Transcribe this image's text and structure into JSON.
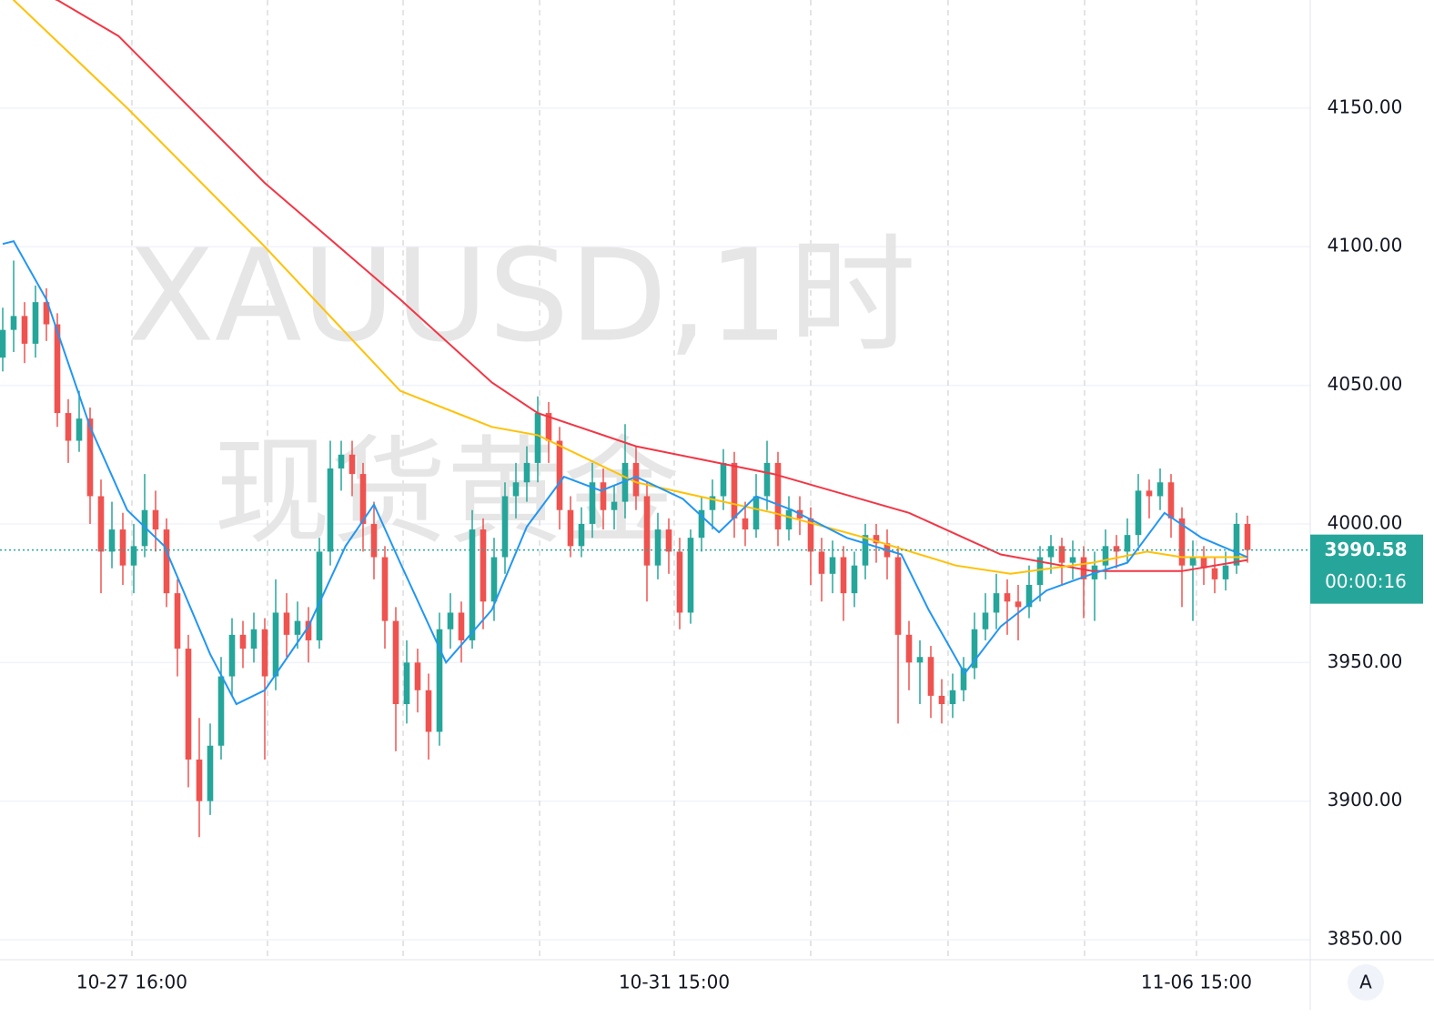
{
  "chart_data": {
    "type": "candlestick",
    "watermark": [
      "XAUUSD,1时",
      "现货黄金"
    ],
    "ohlc": [
      [
        4060,
        4078,
        4055,
        4070
      ],
      [
        4070,
        4095,
        4062,
        4075
      ],
      [
        4075,
        4080,
        4058,
        4065
      ],
      [
        4065,
        4086,
        4060,
        4080
      ],
      [
        4080,
        4085,
        4066,
        4072
      ],
      [
        4072,
        4076,
        4035,
        4040
      ],
      [
        4040,
        4045,
        4022,
        4030
      ],
      [
        4030,
        4048,
        4026,
        4038
      ],
      [
        4038,
        4042,
        4000,
        4010
      ],
      [
        4010,
        4016,
        3975,
        3990
      ],
      [
        3990,
        4008,
        3984,
        3998
      ],
      [
        3998,
        4004,
        3978,
        3985
      ],
      [
        3985,
        4000,
        3975,
        3992
      ],
      [
        3992,
        4018,
        3988,
        4005
      ],
      [
        4005,
        4012,
        3990,
        3998
      ],
      [
        3998,
        4002,
        3970,
        3975
      ],
      [
        3975,
        3980,
        3945,
        3955
      ],
      [
        3955,
        3960,
        3905,
        3915
      ],
      [
        3915,
        3930,
        3887,
        3900
      ],
      [
        3900,
        3928,
        3895,
        3920
      ],
      [
        3920,
        3952,
        3915,
        3945
      ],
      [
        3945,
        3966,
        3938,
        3960
      ],
      [
        3960,
        3965,
        3948,
        3955
      ],
      [
        3955,
        3968,
        3950,
        3962
      ],
      [
        3962,
        3966,
        3915,
        3945
      ],
      [
        3945,
        3980,
        3940,
        3968
      ],
      [
        3968,
        3975,
        3952,
        3960
      ],
      [
        3960,
        3972,
        3955,
        3965
      ],
      [
        3965,
        3970,
        3950,
        3958
      ],
      [
        3958,
        3995,
        3955,
        3990
      ],
      [
        3990,
        4030,
        3985,
        4020
      ],
      [
        4020,
        4030,
        4012,
        4025
      ],
      [
        4025,
        4030,
        4010,
        4018
      ],
      [
        4018,
        4022,
        3990,
        4000
      ],
      [
        4000,
        4008,
        3980,
        3988
      ],
      [
        3988,
        3992,
        3955,
        3965
      ],
      [
        3965,
        3970,
        3918,
        3935
      ],
      [
        3935,
        3958,
        3928,
        3950
      ],
      [
        3950,
        3955,
        3932,
        3940
      ],
      [
        3940,
        3946,
        3915,
        3925
      ],
      [
        3925,
        3968,
        3920,
        3962
      ],
      [
        3962,
        3975,
        3955,
        3968
      ],
      [
        3968,
        3972,
        3950,
        3958
      ],
      [
        3958,
        4005,
        3955,
        3998
      ],
      [
        3998,
        4002,
        3962,
        3972
      ],
      [
        3972,
        3995,
        3965,
        3988
      ],
      [
        3988,
        4015,
        3982,
        4010
      ],
      [
        4010,
        4022,
        4002,
        4015
      ],
      [
        4015,
        4028,
        4008,
        4022
      ],
      [
        4022,
        4046,
        4015,
        4040
      ],
      [
        4040,
        4044,
        4022,
        4030
      ],
      [
        4030,
        4035,
        3998,
        4005
      ],
      [
        4005,
        4010,
        3988,
        3992
      ],
      [
        3992,
        4006,
        3988,
        4000
      ],
      [
        4000,
        4022,
        3995,
        4015
      ],
      [
        4015,
        4020,
        3998,
        4005
      ],
      [
        4005,
        4014,
        3998,
        4008
      ],
      [
        4008,
        4036,
        4002,
        4022
      ],
      [
        4022,
        4028,
        4005,
        4010
      ],
      [
        4010,
        4015,
        3972,
        3985
      ],
      [
        3985,
        4004,
        3980,
        3998
      ],
      [
        3998,
        4002,
        3982,
        3990
      ],
      [
        3990,
        3995,
        3962,
        3968
      ],
      [
        3968,
        3998,
        3964,
        3995
      ],
      [
        3995,
        4010,
        3990,
        4005
      ],
      [
        4005,
        4016,
        3998,
        4010
      ],
      [
        4010,
        4027,
        4005,
        4022
      ],
      [
        4022,
        4026,
        3995,
        4002
      ],
      [
        4002,
        4008,
        3992,
        3998
      ],
      [
        3998,
        4018,
        3995,
        4010
      ],
      [
        4010,
        4030,
        4005,
        4022
      ],
      [
        4022,
        4026,
        3992,
        3998
      ],
      [
        3998,
        4010,
        3994,
        4005
      ],
      [
        4005,
        4010,
        3996,
        4002
      ],
      [
        4002,
        4006,
        3978,
        3990
      ],
      [
        3990,
        3995,
        3972,
        3982
      ],
      [
        3982,
        3994,
        3975,
        3988
      ],
      [
        3988,
        3992,
        3965,
        3975
      ],
      [
        3975,
        3990,
        3970,
        3985
      ],
      [
        3985,
        4000,
        3980,
        3996
      ],
      [
        3996,
        4000,
        3986,
        3993
      ],
      [
        3993,
        3998,
        3980,
        3988
      ],
      [
        3988,
        3992,
        3928,
        3960
      ],
      [
        3960,
        3965,
        3940,
        3950
      ],
      [
        3950,
        3958,
        3935,
        3952
      ],
      [
        3952,
        3956,
        3930,
        3938
      ],
      [
        3938,
        3944,
        3928,
        3935
      ],
      [
        3935,
        3946,
        3930,
        3940
      ],
      [
        3940,
        3952,
        3936,
        3948
      ],
      [
        3948,
        3968,
        3944,
        3962
      ],
      [
        3962,
        3975,
        3958,
        3968
      ],
      [
        3968,
        3982,
        3962,
        3975
      ],
      [
        3975,
        3980,
        3960,
        3972
      ],
      [
        3972,
        3978,
        3958,
        3970
      ],
      [
        3970,
        3985,
        3966,
        3978
      ],
      [
        3978,
        3992,
        3972,
        3988
      ],
      [
        3988,
        3996,
        3982,
        3992
      ],
      [
        3992,
        3995,
        3978,
        3986
      ],
      [
        3986,
        3994,
        3980,
        3988
      ],
      [
        3988,
        3992,
        3966,
        3980
      ],
      [
        3980,
        3990,
        3965,
        3985
      ],
      [
        3985,
        3998,
        3980,
        3992
      ],
      [
        3992,
        3996,
        3984,
        3990
      ],
      [
        3990,
        4002,
        3986,
        3996
      ],
      [
        3996,
        4018,
        3992,
        4012
      ],
      [
        4012,
        4016,
        4002,
        4010
      ],
      [
        4010,
        4020,
        4005,
        4015
      ],
      [
        4015,
        4018,
        3995,
        4002
      ],
      [
        4002,
        4006,
        3970,
        3985
      ],
      [
        3985,
        3994,
        3965,
        3988
      ],
      [
        3988,
        3992,
        3978,
        3984
      ],
      [
        3984,
        3988,
        3975,
        3980
      ],
      [
        3980,
        3990,
        3976,
        3985
      ],
      [
        3985,
        4004,
        3982,
        4000
      ],
      [
        4000,
        4003,
        3986,
        3990.58
      ]
    ],
    "up_color": "#26a69a",
    "down_color": "#ef5350",
    "series": [
      {
        "color": "#f23645",
        "x": [
          0,
          5,
          10.6,
          24,
          36.4,
          44.8,
          49,
          58,
          70.6,
          83,
          91.4,
          99.8,
          108,
          114
        ],
        "values": [
          4196,
          4189,
          4176,
          4123,
          4081,
          4051,
          4040,
          4028,
          4018,
          4004,
          3989,
          3983,
          3983,
          3987
        ]
      },
      {
        "color": "#ffc107",
        "x": [
          0,
          1,
          11.4,
          24,
          36.4,
          44.8,
          49,
          58,
          70.6,
          79,
          87.3,
          92.3,
          99.8,
          104.8,
          108,
          114
        ],
        "values": [
          4193,
          4189,
          4150,
          4100,
          4048,
          4035,
          4032,
          4015,
          4004,
          3995,
          3985,
          3982,
          3986,
          3990,
          3988,
          3988
        ]
      },
      {
        "color": "#2196f3",
        "x": [
          0,
          1,
          4,
          8,
          11.4,
          14.8,
          19,
          21.4,
          24,
          28,
          31.4,
          34,
          36.4,
          40.6,
          44.8,
          48,
          51.4,
          54.8,
          58,
          62.3,
          65.6,
          69,
          72.3,
          77.3,
          82.3,
          84.8,
          88.1,
          91.4,
          95.6,
          99.8,
          103,
          106.4,
          109.8,
          114
        ],
        "values": [
          4101,
          4102,
          4081,
          4035,
          4005,
          3992,
          3953,
          3935,
          3940,
          3963,
          3992,
          4007,
          3986,
          3950,
          3969,
          3999,
          4017,
          4012,
          4017,
          4009,
          3997,
          4010,
          4005,
          3995,
          3989,
          3969,
          3946,
          3963,
          3976,
          3982,
          3986,
          4004,
          3995,
          3988
        ]
      }
    ],
    "last_price": 3990.58,
    "countdown": "00:00:16",
    "xlim": [
      -0.25,
      119.75
    ],
    "ylim": [
      3842.8,
      4189
    ],
    "xticks": [
      {
        "value": 11.83,
        "label": "10-27 16:00"
      },
      {
        "value": 24.25,
        "label": null
      },
      {
        "value": 36.67,
        "label": null
      },
      {
        "value": 49.17,
        "label": null
      },
      {
        "value": 61.5,
        "label": "10-31 15:00"
      },
      {
        "value": 74,
        "label": null
      },
      {
        "value": 86.58,
        "label": null
      },
      {
        "value": 99.08,
        "label": null
      },
      {
        "value": 109.33,
        "label": "11-06 15:00"
      }
    ],
    "yticks": [
      {
        "value": 3850,
        "label": "3850.00"
      },
      {
        "value": 3900,
        "label": "3900.00"
      },
      {
        "value": 3950,
        "label": "3950.00"
      },
      {
        "value": 4000,
        "label": "4000.00"
      },
      {
        "value": 4050,
        "label": "4050.00"
      },
      {
        "value": 4100,
        "label": "4100.00"
      },
      {
        "value": 4150,
        "label": "4150.00"
      }
    ],
    "scale_button": "A",
    "grid": true
  }
}
